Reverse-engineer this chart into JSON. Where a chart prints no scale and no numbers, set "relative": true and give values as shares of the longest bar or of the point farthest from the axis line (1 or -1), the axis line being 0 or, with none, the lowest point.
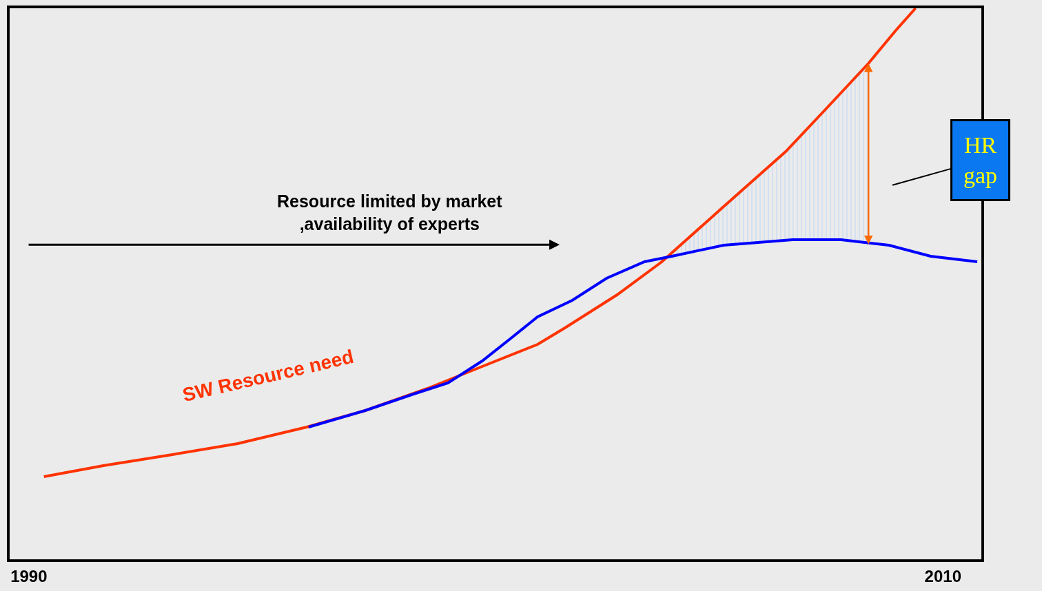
{
  "chart_data": {
    "type": "line",
    "relative": true,
    "xlim": [
      1989.58,
      2010.84
    ],
    "xticks": [
      1990,
      2010
    ],
    "annotations": [
      "Resource limited by market\n,availability of experts",
      "HR gap"
    ],
    "series": [
      {
        "name": "SW Resource need",
        "color": "#ff3300",
        "x": [
          1990.33,
          1991.63,
          1993.14,
          1994.57,
          1996.08,
          1997.36,
          1998.72,
          1999.92,
          2001.13,
          2001.73,
          2002.87,
          2003.85,
          2005.2,
          2006.56,
          2007.47,
          2008.37,
          2008.97,
          2009.4
        ],
        "values": [
          0.15,
          0.17,
          0.19,
          0.21,
          0.24,
          0.27,
          0.31,
          0.35,
          0.39,
          0.42,
          0.48,
          0.54,
          0.64,
          0.74,
          0.82,
          0.9,
          0.96,
          1.0
        ],
        "lower": [
          null,
          null,
          null,
          null,
          null,
          null,
          null,
          null,
          null,
          null,
          null,
          0.54,
          0.57,
          0.58,
          0.58,
          0.57,
          null,
          null
        ],
        "upper": [
          null,
          null,
          null,
          null,
          null,
          null,
          null,
          null,
          null,
          null,
          null,
          0.54,
          0.64,
          0.74,
          0.82,
          0.9,
          null,
          null
        ]
      },
      {
        "color": "#0000ff",
        "x": [
          1996.12,
          1997.36,
          1998.42,
          1999.17,
          1999.92,
          2000.53,
          2001.13,
          2001.89,
          2002.64,
          2003.47,
          2004.07,
          2005.2,
          2006.71,
          2007.77,
          2008.82,
          2009.73,
          2010.75
        ],
        "values": [
          0.24,
          0.27,
          0.3,
          0.32,
          0.36,
          0.4,
          0.44,
          0.47,
          0.51,
          0.54,
          0.55,
          0.57,
          0.58,
          0.58,
          0.57,
          0.55,
          0.54
        ]
      }
    ]
  }
}
